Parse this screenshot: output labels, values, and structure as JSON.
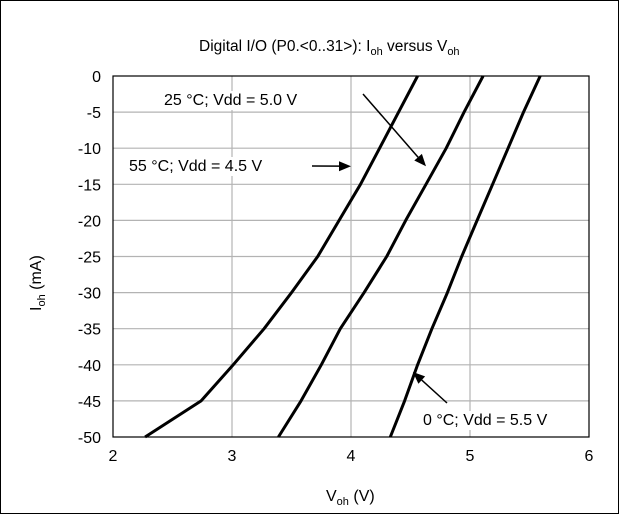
{
  "chart_data": {
    "type": "line",
    "title": "Digital I/O (P0.<0..31>): I",
    "title_sub1": "oh",
    "title_mid": " versus V",
    "title_sub2": "oh",
    "xlabel": "V",
    "xlabel_sub": "oh",
    "xlabel_unit": " (V)",
    "ylabel": "I",
    "ylabel_sub": "oh",
    "ylabel_unit": " (mA)",
    "xlim": [
      2,
      6
    ],
    "ylim": [
      -50,
      0
    ],
    "xticks": [
      "2",
      "3",
      "4",
      "5",
      "6"
    ],
    "yticks": [
      "0",
      "-5",
      "-10",
      "-15",
      "-20",
      "-25",
      "-30",
      "-35",
      "-40",
      "-45",
      "-50"
    ],
    "grid": true,
    "series": [
      {
        "name": "55 °C; Vdd = 4.5 V",
        "points": [
          [
            4.56,
            0
          ],
          [
            4.4,
            -5
          ],
          [
            4.24,
            -10
          ],
          [
            4.08,
            -15
          ],
          [
            3.9,
            -20
          ],
          [
            3.72,
            -25
          ],
          [
            3.5,
            -30
          ],
          [
            3.27,
            -35
          ],
          [
            3.01,
            -40
          ],
          [
            2.74,
            -45
          ],
          [
            2.27,
            -50
          ]
        ]
      },
      {
        "name": "25 °C; Vdd = 5.0 V",
        "points": [
          [
            5.11,
            0
          ],
          [
            4.95,
            -5
          ],
          [
            4.8,
            -10
          ],
          [
            4.63,
            -15
          ],
          [
            4.46,
            -20
          ],
          [
            4.3,
            -25
          ],
          [
            4.11,
            -30
          ],
          [
            3.91,
            -35
          ],
          [
            3.75,
            -40
          ],
          [
            3.58,
            -45
          ],
          [
            3.39,
            -50
          ]
        ]
      },
      {
        "name": "0 °C; Vdd = 5.5 V",
        "points": [
          [
            5.59,
            0
          ],
          [
            5.45,
            -5
          ],
          [
            5.32,
            -10
          ],
          [
            5.19,
            -15
          ],
          [
            5.06,
            -20
          ],
          [
            4.93,
            -25
          ],
          [
            4.81,
            -30
          ],
          [
            4.68,
            -35
          ],
          [
            4.56,
            -40
          ],
          [
            4.45,
            -45
          ],
          [
            4.33,
            -50
          ]
        ]
      }
    ],
    "annotations": [
      {
        "text": "25 °C; Vdd = 5.0 V",
        "arrow_to": [
          4.63,
          -12.5
        ]
      },
      {
        "text": "55 °C; Vdd = 4.5 V",
        "arrow_to": [
          4.0,
          -12.5
        ]
      },
      {
        "text": "0 °C; Vdd = 5.5 V",
        "arrow_to": [
          4.52,
          -41
        ]
      }
    ]
  }
}
